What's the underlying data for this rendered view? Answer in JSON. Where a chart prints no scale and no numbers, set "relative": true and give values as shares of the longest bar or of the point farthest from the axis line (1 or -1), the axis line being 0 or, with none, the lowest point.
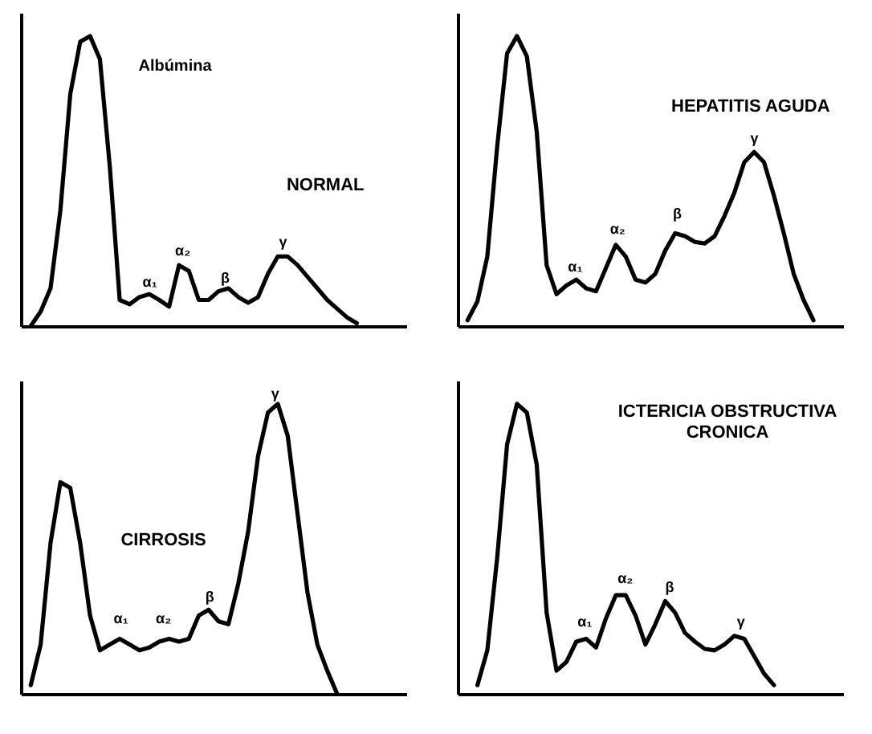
{
  "chart_data": [
    {
      "type": "line",
      "title": "NORMAL",
      "relative": true,
      "annotations": [
        "Albúmina",
        "α₁",
        "α₂",
        "β",
        "γ"
      ],
      "categories": [
        null,
        null,
        null,
        null,
        null,
        null,
        null,
        null,
        null,
        null,
        null,
        null,
        null,
        null,
        null,
        null,
        null,
        null,
        null,
        null,
        null,
        null,
        null,
        null,
        null,
        null,
        null,
        null,
        null,
        null,
        null,
        null,
        null,
        null,
        null,
        null,
        null,
        null,
        null,
        null
      ],
      "series": [
        {
          "color": "#000000",
          "values": [
            null,
            0,
            0.05,
            0.13,
            0.4,
            0.8,
            0.98,
            1,
            0.92,
            0.55,
            0.09,
            0.075,
            0.1,
            0.11,
            0.09,
            0.067,
            0.21,
            0.19,
            0.09,
            0.09,
            0.12,
            0.13,
            0.1,
            0.08,
            0.1,
            0.18,
            0.24,
            0.24,
            0.21,
            0.17,
            0.13,
            0.09,
            0.06,
            0.03,
            0.01,
            null,
            null,
            null,
            null,
            null
          ]
        }
      ]
    },
    {
      "type": "line",
      "title": "HEPATITIS AGUDA",
      "relative": true,
      "annotations": [
        "α₁",
        "α₂",
        "β",
        "γ"
      ],
      "categories": [
        null,
        null,
        null,
        null,
        null,
        null,
        null,
        null,
        null,
        null,
        null,
        null,
        null,
        null,
        null,
        null,
        null,
        null,
        null,
        null,
        null,
        null,
        null,
        null,
        null,
        null,
        null,
        null,
        null,
        null,
        null,
        null,
        null,
        null,
        null,
        null,
        null,
        null,
        null,
        null
      ],
      "series": [
        {
          "color": "#000000",
          "values": [
            null,
            0.02,
            0.085,
            0.24,
            0.62,
            0.94,
            1,
            0.93,
            0.67,
            0.21,
            0.11,
            0.14,
            0.16,
            0.13,
            0.12,
            0.2,
            0.28,
            0.24,
            0.16,
            0.15,
            0.18,
            0.26,
            0.32,
            0.31,
            0.29,
            0.285,
            0.31,
            0.38,
            0.46,
            0.565,
            0.6,
            0.565,
            0.45,
            0.32,
            0.18,
            0.09,
            0.02,
            null,
            null,
            null
          ]
        }
      ]
    },
    {
      "type": "line",
      "title": "CIRROSIS",
      "relative": true,
      "annotations": [
        "α₁",
        "α₂",
        "β",
        "γ"
      ],
      "categories": [
        null,
        null,
        null,
        null,
        null,
        null,
        null,
        null,
        null,
        null,
        null,
        null,
        null,
        null,
        null,
        null,
        null,
        null,
        null,
        null,
        null,
        null,
        null,
        null,
        null,
        null,
        null,
        null,
        null,
        null,
        null,
        null,
        null,
        null,
        null,
        null,
        null,
        null,
        null,
        null
      ],
      "series": [
        {
          "color": "#000000",
          "values": [
            null,
            0.03,
            0.17,
            0.52,
            0.73,
            0.71,
            0.52,
            0.27,
            0.15,
            0.17,
            0.19,
            0.17,
            0.15,
            0.16,
            0.18,
            0.19,
            0.18,
            0.19,
            0.27,
            0.29,
            0.25,
            0.24,
            0.38,
            0.56,
            0.82,
            0.97,
            1,
            0.89,
            0.62,
            0.35,
            0.17,
            0.08,
            0,
            null,
            null,
            null,
            null,
            null,
            null,
            null
          ]
        }
      ]
    },
    {
      "type": "line",
      "title": "ICTERICIA OBSTRUCTIVA\nCRONICA",
      "relative": true,
      "annotations": [
        "α₁",
        "α₂",
        "β",
        "γ"
      ],
      "categories": [
        null,
        null,
        null,
        null,
        null,
        null,
        null,
        null,
        null,
        null,
        null,
        null,
        null,
        null,
        null,
        null,
        null,
        null,
        null,
        null,
        null,
        null,
        null,
        null,
        null,
        null,
        null,
        null,
        null,
        null,
        null,
        null,
        null,
        null,
        null,
        null,
        null,
        null,
        null,
        null
      ],
      "series": [
        {
          "color": "#000000",
          "values": [
            null,
            null,
            0.03,
            0.15,
            0.47,
            0.86,
            1,
            0.97,
            0.79,
            0.28,
            0.08,
            0.11,
            0.18,
            0.19,
            0.16,
            0.26,
            0.34,
            0.34,
            0.27,
            0.17,
            0.24,
            0.32,
            0.28,
            0.21,
            0.18,
            0.155,
            0.15,
            0.17,
            0.2,
            0.19,
            0.13,
            0.07,
            0.03,
            null,
            null,
            null,
            null,
            null,
            null,
            null
          ]
        }
      ]
    }
  ]
}
